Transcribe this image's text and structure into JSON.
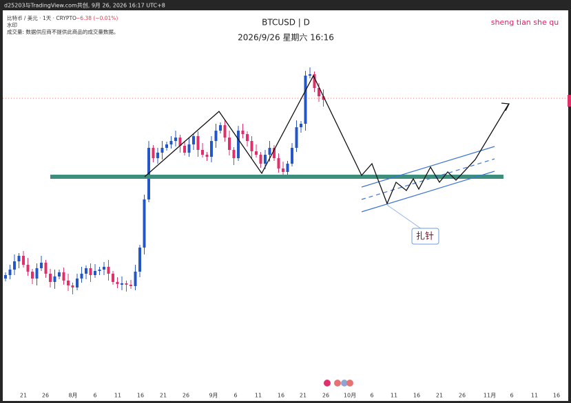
{
  "header": {
    "caption": "d25203与TradingView.com共创, 9月 26, 2026 16:17 UTC+8"
  },
  "legend": {
    "symbol": "比特币 / 美元 · 1天 · CRYPTO",
    "change": "−6.38 (−0.01%)",
    "watermark": "水印",
    "volume": "成交量: 数据供应商不提供此商品的成交量数据。"
  },
  "chart": {
    "title": "BTCUSD | D",
    "datetime": "2026/9/26 星期六 16:16",
    "brand": "sheng tian she qu",
    "annotation": "扎针"
  },
  "x_axis": {
    "labels": [
      "21",
      "26",
      "8月",
      "6",
      "11",
      "16",
      "21",
      "26",
      "9月",
      "6",
      "11",
      "16",
      "21",
      "26",
      "10月",
      "6",
      "11",
      "16",
      "21",
      "26",
      "11月",
      "6",
      "11",
      "16"
    ]
  }
}
